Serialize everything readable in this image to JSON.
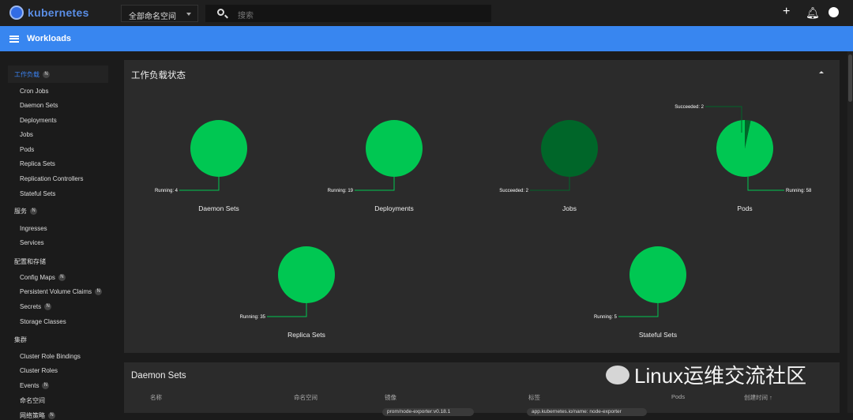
{
  "topbar": {
    "brand": "kubernetes",
    "namespace": "全部命名空间",
    "search_placeholder": "搜索",
    "add_icon": "plus-icon",
    "bell_icon": "bell-icon",
    "account_icon": "account-icon"
  },
  "header": {
    "title": "Workloads"
  },
  "sidebar": {
    "sections": [
      {
        "label": "工作负载",
        "badge": "N",
        "active": true,
        "items": [
          {
            "label": "Cron Jobs"
          },
          {
            "label": "Daemon Sets"
          },
          {
            "label": "Deployments"
          },
          {
            "label": "Jobs"
          },
          {
            "label": "Pods"
          },
          {
            "label": "Replica Sets"
          },
          {
            "label": "Replication Controllers"
          },
          {
            "label": "Stateful Sets"
          }
        ]
      },
      {
        "label": "服务",
        "badge": "N",
        "items": [
          {
            "label": "Ingresses"
          },
          {
            "label": "Services"
          }
        ]
      },
      {
        "label": "配置和存储",
        "items": [
          {
            "label": "Config Maps",
            "badge": "N"
          },
          {
            "label": "Persistent Volume Claims",
            "badge": "N"
          },
          {
            "label": "Secrets",
            "badge": "N"
          },
          {
            "label": "Storage Classes"
          }
        ]
      },
      {
        "label": "集群",
        "items": [
          {
            "label": "Cluster Role Bindings"
          },
          {
            "label": "Cluster Roles"
          },
          {
            "label": "Events",
            "badge": "N"
          },
          {
            "label": "命名空间"
          },
          {
            "label": "网络策略",
            "badge": "N"
          }
        ]
      }
    ]
  },
  "status_card": {
    "title": "工作负载状态"
  },
  "chart_data": {
    "type": "pie",
    "colors": {
      "Running": "#00c752",
      "Succeeded": "#006629"
    },
    "charts": [
      {
        "title": "Daemon Sets",
        "slices": [
          {
            "label": "Running",
            "value": 4
          }
        ]
      },
      {
        "title": "Deployments",
        "slices": [
          {
            "label": "Running",
            "value": 19
          }
        ]
      },
      {
        "title": "Jobs",
        "slices": [
          {
            "label": "Succeeded",
            "value": 2
          }
        ]
      },
      {
        "title": "Pods",
        "slices": [
          {
            "label": "Running",
            "value": 58
          },
          {
            "label": "Succeeded",
            "value": 2
          }
        ]
      },
      {
        "title": "Replica Sets",
        "slices": [
          {
            "label": "Running",
            "value": 35
          }
        ]
      },
      {
        "title": "Stateful Sets",
        "slices": [
          {
            "label": "Running",
            "value": 5
          }
        ]
      }
    ]
  },
  "daemon_sets": {
    "title": "Daemon Sets",
    "columns": [
      "名称",
      "命名空间",
      "镜像",
      "标签",
      "Pods",
      "创建时间 ↑"
    ],
    "rows": [
      {
        "image": "prom/node-exporter:v0.18.1",
        "labels": "app.kubernetes.io/name: node-exporter"
      }
    ]
  },
  "watermark": "Linux运维交流社区"
}
